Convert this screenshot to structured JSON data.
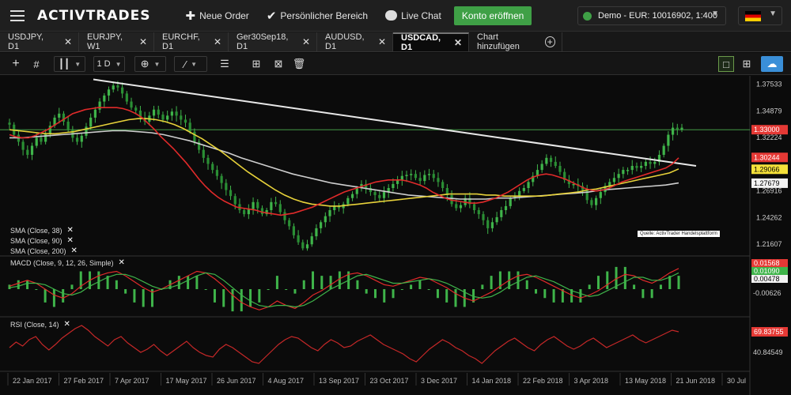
{
  "topbar": {
    "brand": "ACTIVTRADES",
    "new_order": "Neue Order",
    "personal_area": "Persönlicher Bereich",
    "live_chat": "Live Chat",
    "open_account": "Konto eröffnen",
    "account": "Demo - EUR: 10016902, 1:400"
  },
  "tabs": [
    {
      "label": "USDJPY, D1"
    },
    {
      "label": "EURJPY, W1"
    },
    {
      "label": "EURCHF, D1"
    },
    {
      "label": "Ger30Sep18, D1"
    },
    {
      "label": "AUDUSD, D1"
    },
    {
      "label": "USDCAD, D1"
    }
  ],
  "add_chart_label": "Chart hinzufügen",
  "toolbar": {
    "timeframe": "1 D"
  },
  "indicators": {
    "sma38": "SMA (Close, 38)",
    "sma90": "SMA (Close, 90)",
    "sma200": "SMA (Close, 200)",
    "macd": "MACD (Close, 9, 12, 26, Simple)",
    "rsi": "RSI (Close, 14)"
  },
  "source_note": "Quelle: ActivTrader Handelsplattform",
  "colors": {
    "sma38": "#e02a2a",
    "sma90": "#e8d23a",
    "sma200": "#cfcfcf",
    "candle_up": "#3fb44a",
    "price_line": "#4caf50"
  },
  "chart_data": {
    "type": "candlestick",
    "symbol": "USDCAD, D1",
    "x_ticks": [
      "22 Jan 2017",
      "27 Feb 2017",
      "7 Apr 2017",
      "17 May 2017",
      "26 Jun 2017",
      "4 Aug 2017",
      "13 Sep 2017",
      "23 Oct 2017",
      "3 Dec 2017",
      "14 Jan 2018",
      "22 Feb 2018",
      "3 Apr 2018",
      "13 May 2018",
      "21 Jun 2018",
      "30 Jul"
    ],
    "price_axis": {
      "ticks": [
        1.37533,
        1.34879,
        1.32224,
        1.2957,
        1.26916,
        1.24262,
        1.21607
      ],
      "tick_labels": [
        "1.37533",
        "1.34879",
        "1.32224",
        "",
        "1.26916",
        "1.24262",
        "1.21607"
      ],
      "range": [
        1.206,
        1.382
      ]
    },
    "price_labels": {
      "current": "1.33000",
      "sma38": "1.30244",
      "sma90": "1.29066",
      "sma200": "1.27679"
    },
    "close_series": [
      1.335,
      1.325,
      1.318,
      1.31,
      1.305,
      1.314,
      1.322,
      1.318,
      1.326,
      1.334,
      1.342,
      1.346,
      1.338,
      1.33,
      1.322,
      1.318,
      1.324,
      1.333,
      1.342,
      1.35,
      1.358,
      1.364,
      1.37,
      1.374,
      1.372,
      1.366,
      1.358,
      1.352,
      1.349,
      1.342,
      1.338,
      1.344,
      1.35,
      1.345,
      1.34,
      1.344,
      1.348,
      1.344,
      1.34,
      1.337,
      1.328,
      1.318,
      1.31,
      1.302,
      1.296,
      1.29,
      1.284,
      1.277,
      1.27,
      1.264,
      1.256,
      1.25,
      1.246,
      1.251,
      1.258,
      1.252,
      1.246,
      1.25,
      1.258,
      1.256,
      1.248,
      1.24,
      1.234,
      1.225,
      1.218,
      1.212,
      1.216,
      1.224,
      1.232,
      1.238,
      1.244,
      1.25,
      1.254,
      1.252,
      1.256,
      1.262,
      1.266,
      1.272,
      1.276,
      1.272,
      1.268,
      1.265,
      1.262,
      1.268,
      1.272,
      1.276,
      1.28,
      1.284,
      1.285,
      1.286,
      1.282,
      1.279,
      1.285,
      1.286,
      1.282,
      1.278,
      1.272,
      1.265,
      1.256,
      1.252,
      1.255,
      1.262,
      1.256,
      1.25,
      1.246,
      1.24,
      1.232,
      1.238,
      1.243,
      1.25,
      1.254,
      1.262,
      1.264,
      1.269,
      1.272,
      1.278,
      1.284,
      1.29,
      1.296,
      1.302,
      1.298,
      1.294,
      1.288,
      1.28,
      1.276,
      1.276,
      1.274,
      1.27,
      1.26,
      1.255,
      1.262,
      1.268,
      1.274,
      1.278,
      1.282,
      1.286,
      1.29,
      1.29,
      1.294,
      1.292,
      1.294,
      1.298,
      1.296,
      1.298,
      1.305,
      1.314,
      1.325,
      1.332,
      1.33,
      1.332
    ],
    "sma38_series": [
      1.325,
      1.323,
      1.322,
      1.322,
      1.324,
      1.327,
      1.33,
      1.334,
      1.338,
      1.342,
      1.346,
      1.348,
      1.35,
      1.351,
      1.352,
      1.352,
      1.352,
      1.352,
      1.351,
      1.349,
      1.346,
      1.342,
      1.336,
      1.33,
      1.323,
      1.317,
      1.311,
      1.304,
      1.297,
      1.289,
      1.281,
      1.274,
      1.268,
      1.263,
      1.259,
      1.256,
      1.253,
      1.252,
      1.251,
      1.25,
      1.248,
      1.247,
      1.246,
      1.245,
      1.246,
      1.247,
      1.249,
      1.251,
      1.253,
      1.256,
      1.259,
      1.262,
      1.265,
      1.268,
      1.27,
      1.272,
      1.274,
      1.276,
      1.278,
      1.279,
      1.28,
      1.28,
      1.28,
      1.279,
      1.277,
      1.275,
      1.272,
      1.268,
      1.265,
      1.262,
      1.26,
      1.259,
      1.258,
      1.257,
      1.257,
      1.258,
      1.26,
      1.262,
      1.265,
      1.268,
      1.272,
      1.276,
      1.28,
      1.283,
      1.285,
      1.286,
      1.285,
      1.283,
      1.281,
      1.278,
      1.275,
      1.272,
      1.27,
      1.269,
      1.27,
      1.272,
      1.275,
      1.278,
      1.28,
      1.282,
      1.284,
      1.286,
      1.288,
      1.29,
      1.292,
      1.296,
      1.302
    ],
    "sma90_series": [
      1.33,
      1.329,
      1.328,
      1.327,
      1.326,
      1.326,
      1.327,
      1.328,
      1.33,
      1.332,
      1.334,
      1.336,
      1.338,
      1.34,
      1.341,
      1.341,
      1.34,
      1.338,
      1.335,
      1.331,
      1.326,
      1.321,
      1.315,
      1.309,
      1.302,
      1.295,
      1.288,
      1.282,
      1.276,
      1.27,
      1.265,
      1.261,
      1.258,
      1.256,
      1.255,
      1.254,
      1.254,
      1.255,
      1.256,
      1.257,
      1.258,
      1.259,
      1.26,
      1.261,
      1.262,
      1.263,
      1.264,
      1.265,
      1.266,
      1.266,
      1.266,
      1.266,
      1.265,
      1.265,
      1.264,
      1.264,
      1.264,
      1.264,
      1.264,
      1.265,
      1.266,
      1.267,
      1.268,
      1.27,
      1.271,
      1.273,
      1.275,
      1.277,
      1.279,
      1.281,
      1.283,
      1.285,
      1.287,
      1.291
    ],
    "sma200_series": [
      1.322,
      1.322,
      1.323,
      1.324,
      1.325,
      1.326,
      1.327,
      1.328,
      1.329,
      1.329,
      1.328,
      1.327,
      1.325,
      1.322,
      1.319,
      1.315,
      1.311,
      1.307,
      1.302,
      1.298,
      1.294,
      1.29,
      1.286,
      1.283,
      1.28,
      1.277,
      1.275,
      1.273,
      1.271,
      1.269,
      1.267,
      1.265,
      1.264,
      1.263,
      1.262,
      1.261,
      1.261,
      1.261,
      1.262,
      1.262,
      1.263,
      1.264,
      1.265,
      1.266,
      1.267,
      1.268,
      1.27,
      1.271,
      1.272,
      1.273,
      1.274,
      1.275,
      1.277
    ],
    "trendline": {
      "start": 1.38,
      "end": 1.294
    },
    "macd": {
      "axis_labels": [
        "0.01568",
        "0.01090",
        "0.00478",
        "-0.00626"
      ],
      "macd_series": [
        0.002,
        0.004,
        0.006,
        0.004,
        0.0,
        -0.004,
        -0.006,
        -0.003,
        0.002,
        0.006,
        0.009,
        0.011,
        0.012,
        0.009,
        0.005,
        0.001,
        -0.002,
        0.0,
        0.003,
        0.006,
        0.009,
        0.012,
        0.011,
        0.007,
        0.002,
        -0.004,
        -0.009,
        -0.012,
        -0.014,
        -0.012,
        -0.008,
        -0.011,
        -0.013,
        -0.009,
        -0.004,
        -0.001,
        0.003,
        0.007,
        0.01,
        0.011,
        0.009,
        0.006,
        0.003,
        0.002,
        0.004,
        0.006,
        0.008,
        0.007,
        0.004,
        0.001,
        -0.003,
        -0.006,
        -0.008,
        -0.005,
        -0.002,
        0.002,
        0.006,
        0.009,
        0.01,
        0.008,
        0.005,
        0.002,
        -0.001,
        -0.004,
        -0.006,
        -0.004,
        -0.001,
        0.003,
        0.007,
        0.01,
        0.009,
        0.006,
        0.004,
        0.007,
        0.011,
        0.014
      ],
      "signal_series": [
        0.001,
        0.002,
        0.004,
        0.004,
        0.003,
        0.0,
        -0.003,
        -0.004,
        -0.002,
        0.002,
        0.005,
        0.008,
        0.01,
        0.01,
        0.008,
        0.005,
        0.002,
        0.0,
        0.001,
        0.003,
        0.006,
        0.009,
        0.011,
        0.01,
        0.006,
        0.001,
        -0.004,
        -0.008,
        -0.011,
        -0.012,
        -0.011,
        -0.011,
        -0.012,
        -0.011,
        -0.008,
        -0.004,
        0.0,
        0.003,
        0.006,
        0.009,
        0.01,
        0.008,
        0.006,
        0.004,
        0.004,
        0.005,
        0.006,
        0.007,
        0.006,
        0.004,
        0.001,
        -0.002,
        -0.005,
        -0.006,
        -0.005,
        -0.002,
        0.002,
        0.005,
        0.008,
        0.009,
        0.007,
        0.005,
        0.002,
        -0.001,
        -0.003,
        -0.005,
        -0.004,
        -0.001,
        0.002,
        0.005,
        0.008,
        0.008,
        0.006,
        0.006,
        0.008,
        0.011
      ]
    },
    "rsi": {
      "axis_labels": [
        "69.83755",
        "40.84549"
      ],
      "series": [
        48,
        55,
        50,
        58,
        62,
        52,
        45,
        52,
        60,
        66,
        72,
        76,
        70,
        62,
        56,
        50,
        58,
        62,
        54,
        48,
        42,
        46,
        52,
        44,
        38,
        44,
        50,
        56,
        48,
        42,
        38,
        36,
        46,
        52,
        48,
        42,
        36,
        30,
        28,
        36,
        44,
        52,
        58,
        62,
        60,
        54,
        48,
        44,
        52,
        58,
        54,
        48,
        50,
        56,
        60,
        64,
        58,
        52,
        48,
        44,
        40,
        34,
        30,
        38,
        46,
        52,
        58,
        54,
        48,
        44,
        38,
        34,
        28,
        36,
        44,
        50,
        56,
        60,
        54,
        48,
        44,
        52,
        58,
        62,
        56,
        50,
        46,
        50,
        56,
        60,
        54,
        48,
        52,
        56,
        60,
        64,
        58,
        54,
        58,
        62,
        66,
        70,
        68
      ]
    }
  }
}
